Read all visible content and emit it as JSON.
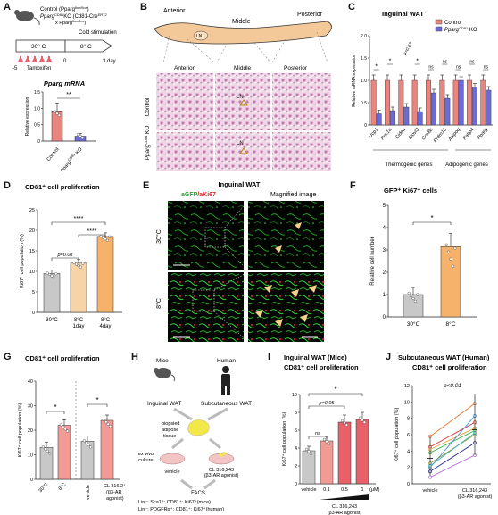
{
  "panels": {
    "A": {
      "label": "A",
      "legend_control": "Control (Pparg",
      "legend_control_sup": "flox/flox",
      "legend_ko": "Pparg",
      "legend_ko_sup": "CD81",
      "legend_ko_rest": "KO (Cd81-Cre",
      "legend_ko_sup2": "ERT2",
      "legend_ko_line2": "x Pparg",
      "legend_ko_sup3": "flox/flox",
      "timeline_30": "30° C",
      "timeline_8": "8° C",
      "cold_label": "Cold stimulation",
      "tick_m5": "-5",
      "tick_0": "0",
      "tick_3day": "3 day",
      "tamoxifen": "Tamoxifen",
      "chart_title": "Pparg mRNA",
      "ylabel": "Relative expression",
      "sig": "**",
      "cat_control": "Control",
      "cat_ko": "Pparg",
      "cat_ko_sup": "CD81",
      "cat_ko_rest": "KO"
    },
    "B": {
      "label": "B",
      "anterior": "Anterior",
      "middle": "Middle",
      "posterior": "Posterior",
      "ln": "LN",
      "col_anterior": "Anterior",
      "col_middle": "Middle",
      "col_posterior": "Posterior",
      "row_control": "Control",
      "row_ko": "Pparg",
      "row_ko_sup": "CD81",
      "row_ko_rest": "KO"
    },
    "C": {
      "label": "C",
      "title": "Inguinal WAT",
      "legend_control": "Control",
      "legend_ko": "Pparg",
      "legend_ko_sup": "CD81",
      "legend_ko_rest": "KO",
      "ylabel": "Relative mRNA expression",
      "group_thermo": "Thermogenic genes",
      "group_adipo": "Adipogenic genes",
      "p_value": "p=0.07",
      "sigs": [
        "*",
        "*",
        "",
        "*",
        "ns",
        "ns",
        "ns",
        "ns",
        "ns"
      ]
    },
    "D": {
      "label": "D",
      "title": "CD81⁺ cell proliferation",
      "ylabel": "Ki67⁺ cell population (%)",
      "sig_top": "****",
      "sig_mid": "****",
      "p_value": "p=0.08",
      "cat_30": "30°C",
      "cat_8_1": "8°C",
      "cat_8_1b": "1day",
      "cat_8_4": "8°C",
      "cat_8_4b": "4day"
    },
    "E": {
      "label": "E",
      "title": "Inguinal WAT",
      "stain_a": "aGFP",
      "stain_b": "/aKi67",
      "magnified": "Magnified image",
      "row_30": "30°C",
      "row_8": "8°C"
    },
    "F": {
      "label": "F",
      "title": "GFP⁺ Ki67⁺ cells",
      "ylabel": "Relative cell number",
      "sig": "*",
      "cat_30": "30°C",
      "cat_8": "8°C"
    },
    "G": {
      "label": "G",
      "title": "CD81⁺ cell proliferation",
      "ylabel": "Ki67⁺ cell population (%)",
      "sig1": "*",
      "sig2": "*",
      "cat_30": "30°C",
      "cat_8": "8°C",
      "cat_vehicle": "vehicle",
      "cat_cl": "CL 316,243",
      "cat_cl2": "(β3-AR",
      "cat_cl3": "agonist)"
    },
    "H": {
      "label": "H",
      "mice": "Mice",
      "human": "Human",
      "inguinal": "Inguinal WAT",
      "subcut": "Subcutaneous WAT",
      "biopsied1": "biopsied",
      "biopsied2": "adipose",
      "biopsied3": "tissue",
      "exvivo1": "ex vivo",
      "exvivo2": "culture",
      "vehicle": "vehicle",
      "cl1": "CL 316,243",
      "cl2": "(β3-AR agonist)",
      "facs": "FACS",
      "lin_mice": "Lin⁻: Sca1⁺: CD81⁺: Ki67⁺(mice)",
      "lin_human": "Lin⁻: PDGFRα⁺: CD81⁺: Ki67⁺(human)"
    },
    "I": {
      "label": "I",
      "title": "Inguinal WAT (Mice)",
      "subtitle": "CD81⁺ cell proliferation",
      "ylabel": "Ki67⁺ cell population (%)",
      "sig": "*",
      "p_value": "p=0.05",
      "ns": "ns",
      "vehicle": "vehicle",
      "d1": "0.1",
      "d2": "0.5",
      "d3": "1",
      "unit": "(μM)",
      "drug1": "CL 316,243",
      "drug2": "(β3-AR agonist)"
    },
    "J": {
      "label": "J",
      "title": "Subcutaneous WAT (Human)",
      "subtitle": "CD81⁺ cell proliferation",
      "ylabel": "Ki67⁺ cell population (%)",
      "p_value": "p<0.01",
      "cat_vehicle": "vehicle",
      "cat_cl": "CL 316,243",
      "cat_cl2": "(β3-AR agonist)"
    }
  },
  "colors": {
    "control": "#e8857f",
    "ko": "#6b6bd8",
    "gray": "#c8c8c8",
    "light_orange": "#f7d4a8",
    "orange": "#f6b26b",
    "salmon": "#f29a94",
    "red": "#e8606a"
  },
  "chart_data": [
    {
      "panel": "A",
      "type": "bar",
      "categories": [
        "Control",
        "PpargCD81 KO"
      ],
      "values": [
        0.92,
        0.15
      ],
      "ylim": [
        0,
        1.5
      ],
      "yticks": [
        "0",
        "0.5",
        "1.0",
        "1.5"
      ]
    },
    {
      "panel": "C",
      "type": "bar",
      "categories": [
        "Ucp1",
        "Pgc1a",
        "Cidea",
        "Elovl3",
        "Cox8b",
        "Prdm16",
        "Adipoq",
        "Fabp4",
        "Pparg"
      ],
      "series": [
        {
          "name": "Control",
          "values": [
            1.0,
            1.0,
            1.0,
            1.0,
            1.0,
            1.0,
            1.0,
            1.0,
            1.0
          ]
        },
        {
          "name": "PpargCD81 KO",
          "values": [
            0.25,
            0.32,
            0.4,
            0.3,
            0.72,
            0.6,
            1.0,
            0.85,
            0.78
          ]
        }
      ],
      "ylim": [
        0,
        2.0
      ],
      "yticks": [
        "0",
        "0.5",
        "1.0",
        "1.5",
        "2.0"
      ]
    },
    {
      "panel": "D",
      "type": "bar",
      "categories": [
        "30°C",
        "8°C 1day",
        "8°C 4day"
      ],
      "values": [
        9.5,
        12,
        18.5
      ],
      "ylim": [
        0,
        25
      ],
      "yticks": [
        "0",
        "5",
        "10",
        "15",
        "20",
        "25"
      ]
    },
    {
      "panel": "F",
      "type": "bar",
      "categories": [
        "30°C",
        "8°C"
      ],
      "values": [
        1.0,
        3.15
      ],
      "ylim": [
        0,
        5
      ],
      "yticks": [
        "0",
        "1",
        "2",
        "3",
        "4",
        "5"
      ]
    },
    {
      "panel": "G",
      "type": "bar",
      "categories": [
        "30°C",
        "8°C",
        "vehicle",
        "CL 316,243"
      ],
      "values": [
        13,
        22,
        15.5,
        24
      ],
      "ylim": [
        0,
        40
      ],
      "yticks": [
        "0",
        "10",
        "20",
        "30",
        "40"
      ]
    },
    {
      "panel": "I",
      "type": "bar",
      "categories": [
        "vehicle",
        "0.1",
        "0.5",
        "1"
      ],
      "values": [
        3.7,
        4.8,
        6.9,
        7.2
      ],
      "ylim": [
        0,
        10
      ],
      "yticks": [
        "0",
        "2",
        "4",
        "6",
        "8",
        "10"
      ]
    },
    {
      "panel": "J",
      "type": "line",
      "categories": [
        "vehicle",
        "CL 316,243"
      ],
      "series": [
        {
          "color": "#e07b39",
          "values": [
            5.8,
            9.8
          ]
        },
        {
          "color": "#d23a3a",
          "values": [
            4.5,
            7.5
          ]
        },
        {
          "color": "#e8a040",
          "values": [
            4.2,
            6.8
          ]
        },
        {
          "color": "#3bb54a",
          "values": [
            3.8,
            6.5
          ]
        },
        {
          "color": "#9b9b2f",
          "values": [
            2.5,
            6.0
          ]
        },
        {
          "color": "#4a8fd8",
          "values": [
            2.0,
            8.3
          ]
        },
        {
          "color": "#2b2b8f",
          "values": [
            1.5,
            5.0
          ]
        },
        {
          "color": "#b46ad8",
          "values": [
            0.8,
            3.5
          ]
        },
        {
          "color": "#3ab0b0",
          "values": [
            2.2,
            6.2
          ]
        }
      ],
      "ylim": [
        0,
        12
      ],
      "yticks": [
        "0",
        "2",
        "4",
        "6",
        "8",
        "10",
        "12"
      ]
    }
  ]
}
